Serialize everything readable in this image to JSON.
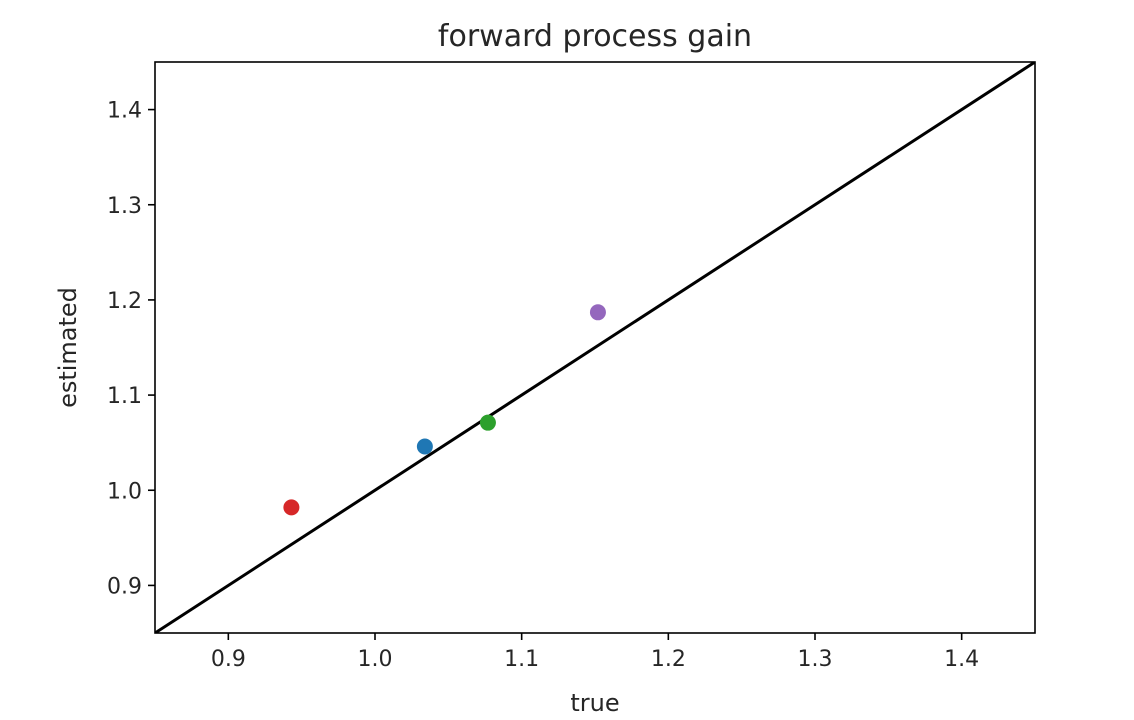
{
  "chart_data": {
    "type": "scatter",
    "title": "forward process gain",
    "xlabel": "true",
    "ylabel": "estimated",
    "xlim": [
      0.85,
      1.45
    ],
    "ylim": [
      0.85,
      1.45
    ],
    "xticks": [
      "0.9",
      "1.0",
      "1.1",
      "1.2",
      "1.3",
      "1.4"
    ],
    "yticks": [
      "0.9",
      "1.0",
      "1.1",
      "1.2",
      "1.3",
      "1.4"
    ],
    "grid": false,
    "reference_line": {
      "x": [
        0.85,
        1.45
      ],
      "y": [
        0.85,
        1.45
      ],
      "color": "#000000"
    },
    "points": [
      {
        "x": 0.943,
        "y": 0.982,
        "color": "#d62728"
      },
      {
        "x": 1.034,
        "y": 1.046,
        "color": "#1f77b4"
      },
      {
        "x": 1.077,
        "y": 1.071,
        "color": "#2ca02c"
      },
      {
        "x": 1.152,
        "y": 1.187,
        "color": "#9467bd"
      }
    ]
  }
}
